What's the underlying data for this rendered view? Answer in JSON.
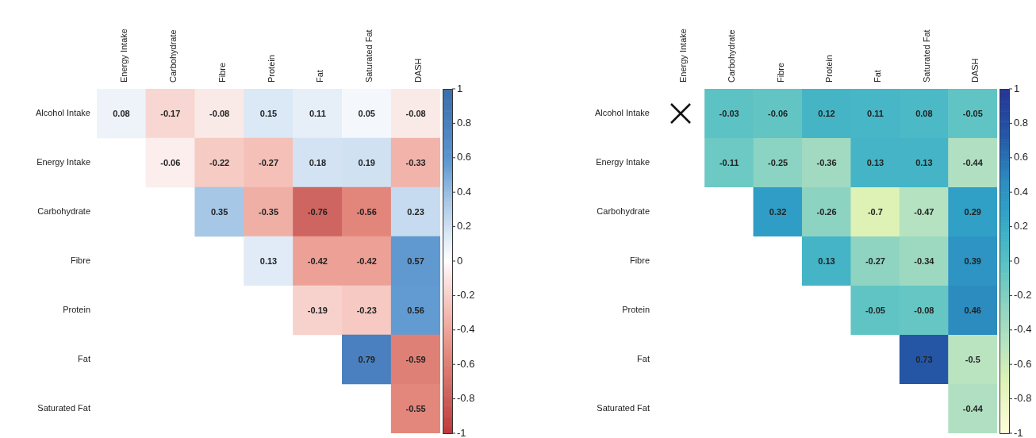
{
  "chart_data": [
    {
      "type": "heatmap",
      "categories": [
        "Energy Intake",
        "Carbohydrate",
        "Fibre",
        "Protein",
        "Fat",
        "Saturated Fat",
        "DASH"
      ],
      "y_categories": [
        "Alcohol Intake",
        "Energy Intake",
        "Carbohydrate",
        "Fibre",
        "Protein",
        "Fat",
        "Saturated Fat"
      ],
      "cells": [
        [
          0.08,
          -0.17,
          -0.08,
          0.15,
          0.11,
          0.05,
          -0.08
        ],
        [
          null,
          -0.06,
          -0.22,
          -0.27,
          0.18,
          0.19,
          -0.33
        ],
        [
          null,
          null,
          0.35,
          -0.35,
          -0.76,
          -0.56,
          0.23
        ],
        [
          null,
          null,
          null,
          0.13,
          -0.42,
          -0.42,
          0.57
        ],
        [
          null,
          null,
          null,
          null,
          -0.19,
          -0.23,
          0.56
        ],
        [
          null,
          null,
          null,
          null,
          null,
          0.79,
          -0.59
        ],
        [
          null,
          null,
          null,
          null,
          null,
          null,
          -0.55
        ]
      ],
      "clim": [
        -1,
        1
      ],
      "cticks": [
        -1,
        -0.8,
        -0.6,
        -0.4,
        -0.2,
        0,
        0.2,
        0.4,
        0.6,
        0.8,
        1
      ],
      "data_labels": true
    },
    {
      "type": "heatmap",
      "categories": [
        "Energy Intake",
        "Carbohydrate",
        "Fibre",
        "Protein",
        "Fat",
        "Saturated Fat",
        "DASH"
      ],
      "y_categories": [
        "Alcohol Intake",
        "Energy Intake",
        "Carbohydrate",
        "Fibre",
        "Protein",
        "Fat",
        "Saturated Fat"
      ],
      "cells": [
        [
          null,
          -0.03,
          -0.06,
          0.12,
          0.11,
          0.08,
          -0.05
        ],
        [
          null,
          -0.11,
          -0.25,
          -0.36,
          0.13,
          0.13,
          -0.44
        ],
        [
          null,
          null,
          0.32,
          -0.26,
          -0.7,
          -0.47,
          0.29
        ],
        [
          null,
          null,
          null,
          0.13,
          -0.27,
          -0.34,
          0.39
        ],
        [
          null,
          null,
          null,
          null,
          -0.05,
          -0.08,
          0.46
        ],
        [
          null,
          null,
          null,
          null,
          null,
          0.73,
          -0.5
        ],
        [
          null,
          null,
          null,
          null,
          null,
          null,
          -0.44
        ]
      ],
      "clim": [
        -1,
        1
      ],
      "cticks": [
        -1,
        -0.8,
        -0.6,
        -0.4,
        -0.2,
        0,
        0.2,
        0.4,
        0.6,
        0.8,
        1
      ],
      "data_labels": true
    }
  ]
}
